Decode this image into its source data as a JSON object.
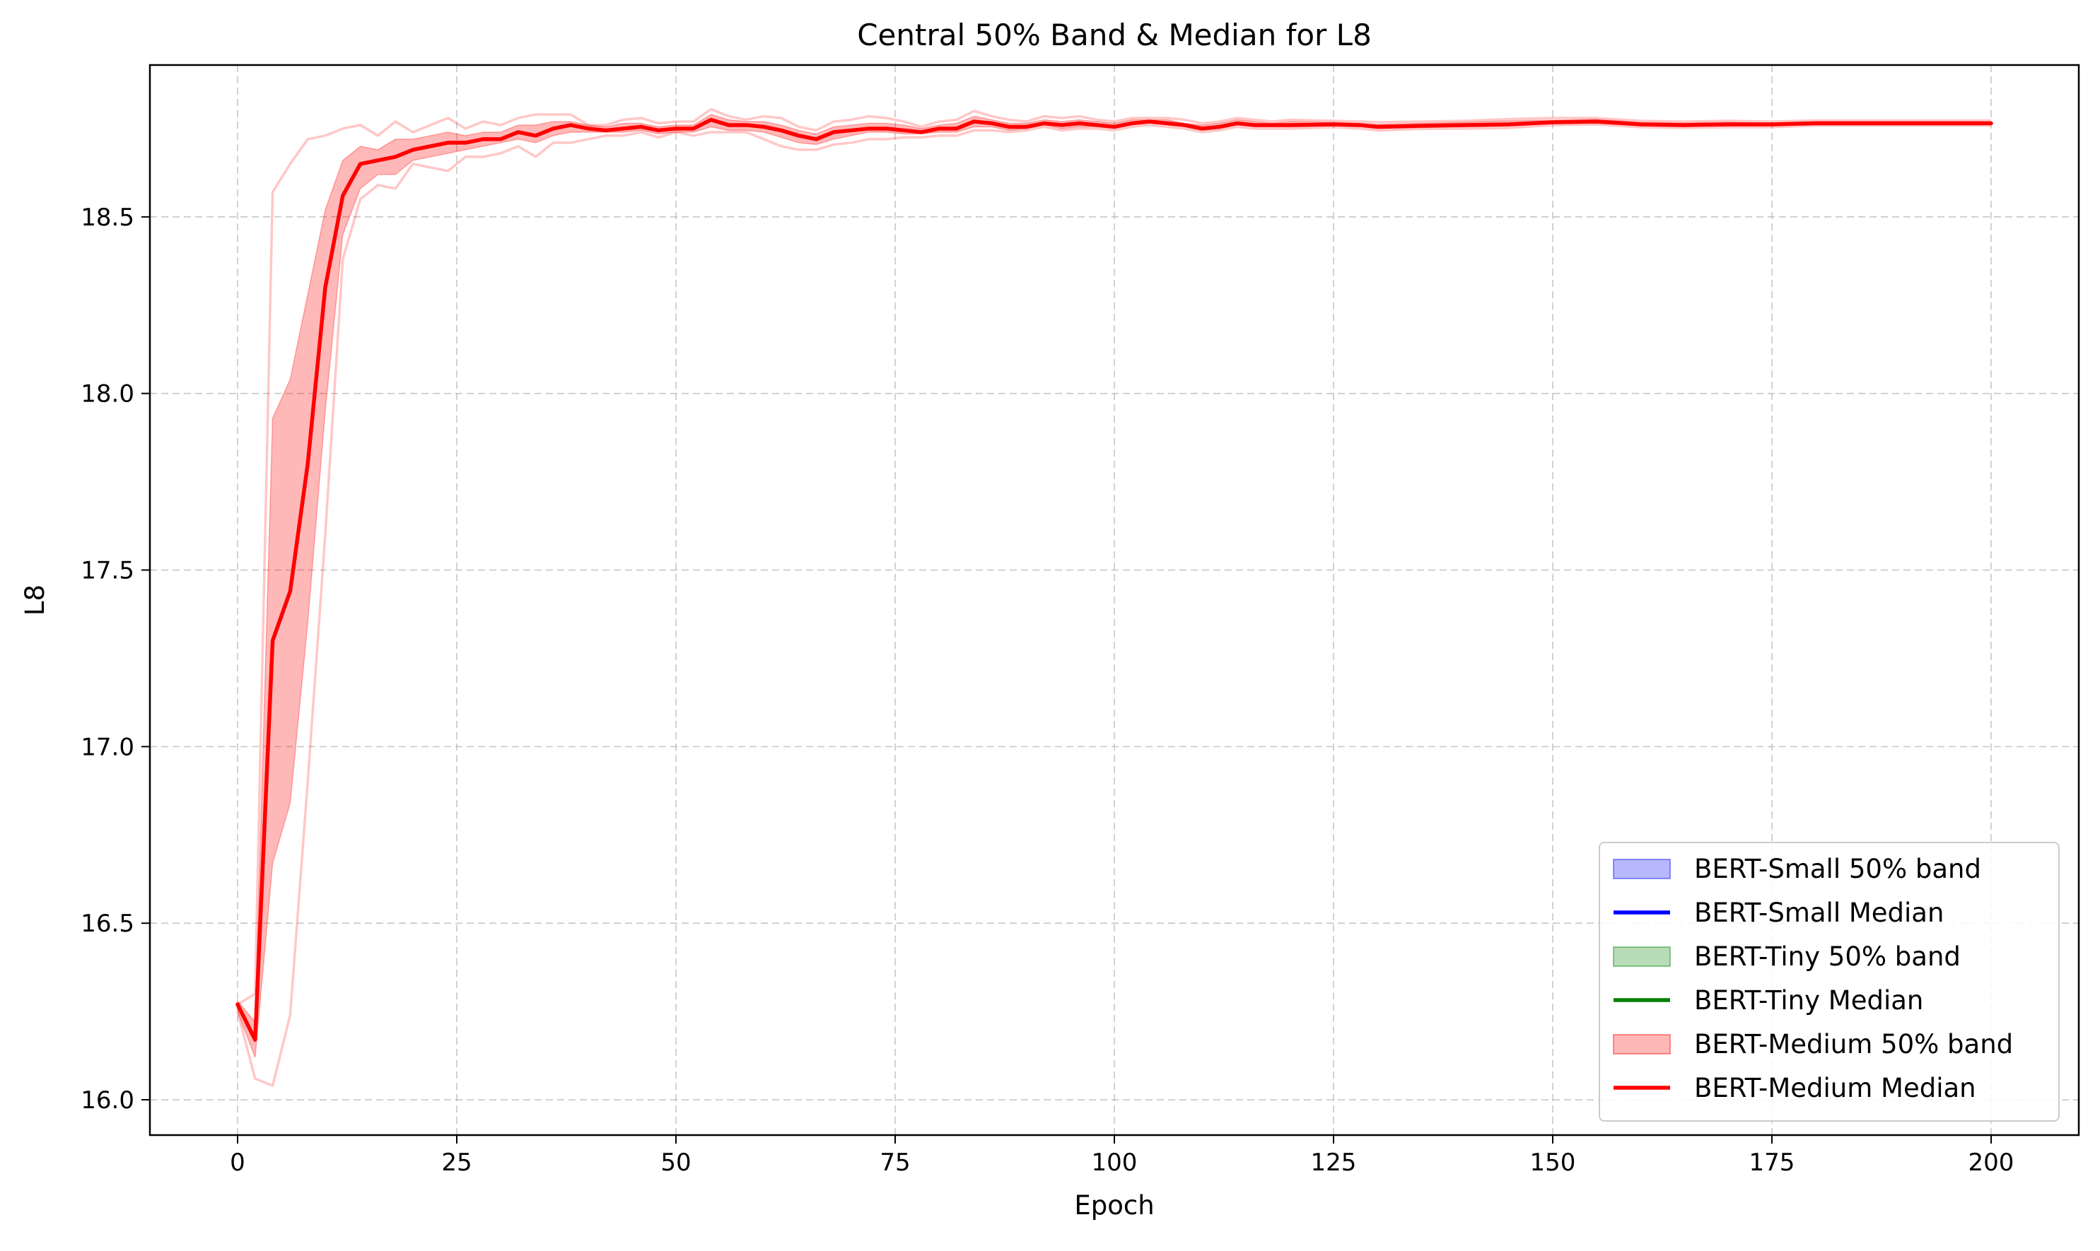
{
  "chart_data": {
    "type": "line",
    "title": "Central 50% Band & Median for L8",
    "xlabel": "Epoch",
    "ylabel": "L8",
    "xlim": [
      -10,
      210
    ],
    "ylim": [
      15.9,
      18.93
    ],
    "xticks": [
      0,
      25,
      50,
      75,
      100,
      125,
      150,
      175,
      200
    ],
    "yticks": [
      16.0,
      16.5,
      17.0,
      17.5,
      18.0,
      18.5
    ],
    "xtick_labels": [
      "0",
      "25",
      "50",
      "75",
      "100",
      "125",
      "150",
      "175",
      "200"
    ],
    "ytick_labels": [
      "16.0",
      "16.5",
      "17.0",
      "17.5",
      "18.0",
      "18.5"
    ],
    "grid": true,
    "legend_position": "lower-right",
    "legend": [
      {
        "label": "BERT-Small 50% band",
        "kind": "band",
        "color": "#0000ff"
      },
      {
        "label": "BERT-Small Median",
        "kind": "line",
        "color": "#0000ff"
      },
      {
        "label": "BERT-Tiny 50% band",
        "kind": "band",
        "color": "#008000"
      },
      {
        "label": "BERT-Tiny Median",
        "kind": "line",
        "color": "#008000"
      },
      {
        "label": "BERT-Medium 50% band",
        "kind": "band",
        "color": "#ff0000"
      },
      {
        "label": "BERT-Medium Median",
        "kind": "line",
        "color": "#ff0000"
      }
    ],
    "series": [
      {
        "name": "BERT-Medium Median",
        "color": "#ff0000",
        "x": [
          0,
          2,
          4,
          6,
          8,
          10,
          12,
          14,
          16,
          18,
          20,
          22,
          24,
          26,
          28,
          30,
          32,
          34,
          36,
          38,
          40,
          42,
          44,
          46,
          48,
          50,
          52,
          54,
          56,
          58,
          60,
          62,
          64,
          66,
          68,
          70,
          72,
          74,
          76,
          78,
          80,
          82,
          84,
          86,
          88,
          90,
          92,
          94,
          96,
          98,
          100,
          102,
          104,
          106,
          108,
          110,
          112,
          114,
          116,
          118,
          120,
          125,
          128,
          130,
          135,
          140,
          145,
          150,
          155,
          160,
          165,
          170,
          175,
          180,
          185,
          190,
          195,
          200
        ],
        "median": [
          16.27,
          16.17,
          17.3,
          17.44,
          17.8,
          18.3,
          18.56,
          18.65,
          18.66,
          18.67,
          18.69,
          18.7,
          18.71,
          18.71,
          18.72,
          18.72,
          18.74,
          18.73,
          18.75,
          18.76,
          18.75,
          18.745,
          18.75,
          18.755,
          18.745,
          18.75,
          18.75,
          18.775,
          18.76,
          18.76,
          18.755,
          18.745,
          18.73,
          18.72,
          18.74,
          18.745,
          18.75,
          18.75,
          18.745,
          18.74,
          18.75,
          18.75,
          18.77,
          18.765,
          18.755,
          18.755,
          18.765,
          18.76,
          18.765,
          18.76,
          18.755,
          18.765,
          18.77,
          18.765,
          18.76,
          18.75,
          18.755,
          18.765,
          18.76,
          18.76,
          18.76,
          18.762,
          18.76,
          18.755,
          18.758,
          18.76,
          18.762,
          18.768,
          18.77,
          18.762,
          18.76,
          18.762,
          18.762,
          18.765,
          18.765,
          18.765,
          18.765,
          18.765
        ],
        "q25": [
          16.25,
          16.12,
          16.67,
          16.84,
          17.35,
          17.95,
          18.45,
          18.58,
          18.62,
          18.62,
          18.66,
          18.67,
          18.68,
          18.69,
          18.7,
          18.71,
          18.72,
          18.71,
          18.73,
          18.74,
          18.74,
          18.74,
          18.74,
          18.745,
          18.735,
          18.74,
          18.74,
          18.755,
          18.745,
          18.745,
          18.74,
          18.725,
          18.71,
          18.705,
          18.72,
          18.73,
          18.74,
          18.74,
          18.735,
          18.735,
          18.74,
          18.74,
          18.755,
          18.755,
          18.745,
          18.75,
          18.76,
          18.75,
          18.755,
          18.755,
          18.75,
          18.76,
          18.765,
          18.76,
          18.755,
          18.745,
          18.75,
          18.76,
          18.755,
          18.755,
          18.755,
          18.758,
          18.755,
          18.75,
          18.753,
          18.755,
          18.757,
          18.764,
          18.766,
          18.758,
          18.756,
          18.758,
          18.758,
          18.762,
          18.762,
          18.762,
          18.762,
          18.762
        ],
        "q75": [
          16.28,
          16.22,
          17.93,
          18.04,
          18.28,
          18.52,
          18.66,
          18.7,
          18.69,
          18.72,
          18.72,
          18.73,
          18.74,
          18.73,
          18.74,
          18.74,
          18.76,
          18.76,
          18.77,
          18.77,
          18.76,
          18.755,
          18.765,
          18.765,
          18.755,
          18.76,
          18.76,
          18.79,
          18.775,
          18.77,
          18.77,
          18.76,
          18.745,
          18.735,
          18.755,
          18.76,
          18.765,
          18.765,
          18.76,
          18.75,
          18.76,
          18.765,
          18.785,
          18.775,
          18.765,
          18.765,
          18.775,
          18.77,
          18.775,
          18.77,
          18.765,
          18.775,
          18.775,
          18.775,
          18.765,
          18.76,
          18.765,
          18.775,
          18.77,
          18.765,
          18.77,
          18.768,
          18.765,
          18.762,
          18.765,
          18.768,
          18.772,
          18.774,
          18.776,
          18.768,
          18.766,
          18.768,
          18.766,
          18.77,
          18.77,
          18.77,
          18.77,
          18.77
        ],
        "min": [
          16.25,
          16.06,
          16.04,
          16.24,
          16.9,
          17.6,
          18.38,
          18.55,
          18.59,
          18.58,
          18.65,
          18.64,
          18.63,
          18.67,
          18.67,
          18.68,
          18.7,
          18.67,
          18.71,
          18.71,
          18.72,
          18.73,
          18.73,
          18.74,
          18.725,
          18.74,
          18.73,
          18.74,
          18.74,
          18.74,
          18.72,
          18.7,
          18.69,
          18.69,
          18.705,
          18.71,
          18.72,
          18.72,
          18.725,
          18.725,
          18.73,
          18.73,
          18.745,
          18.745,
          18.74,
          18.745,
          18.755,
          18.745,
          18.75,
          18.75,
          18.745,
          18.755,
          18.76,
          18.755,
          18.75,
          18.74,
          18.745,
          18.755,
          18.75,
          18.75,
          18.75,
          18.754,
          18.75,
          18.745,
          18.749,
          18.75,
          18.752,
          18.76,
          18.762,
          18.754,
          18.752,
          18.754,
          18.754,
          18.759,
          18.759,
          18.759,
          18.759,
          18.759
        ],
        "max": [
          16.27,
          16.3,
          18.57,
          18.65,
          18.72,
          18.73,
          18.75,
          18.76,
          18.73,
          18.77,
          18.74,
          18.76,
          18.78,
          18.75,
          18.77,
          18.76,
          18.78,
          18.79,
          18.79,
          18.79,
          18.76,
          18.76,
          18.775,
          18.78,
          18.765,
          18.77,
          18.77,
          18.805,
          18.785,
          18.775,
          18.785,
          18.78,
          18.755,
          18.745,
          18.77,
          18.775,
          18.785,
          18.78,
          18.77,
          18.755,
          18.77,
          18.775,
          18.8,
          18.785,
          18.775,
          18.77,
          18.785,
          18.78,
          18.785,
          18.775,
          18.77,
          18.78,
          18.78,
          18.78,
          18.775,
          18.765,
          18.77,
          18.78,
          18.775,
          18.77,
          18.775,
          18.772,
          18.77,
          18.768,
          18.77,
          18.772,
          18.777,
          18.78,
          18.78,
          18.772,
          18.77,
          18.772,
          18.77,
          18.773,
          18.773,
          18.773,
          18.773,
          18.773
        ]
      }
    ]
  }
}
